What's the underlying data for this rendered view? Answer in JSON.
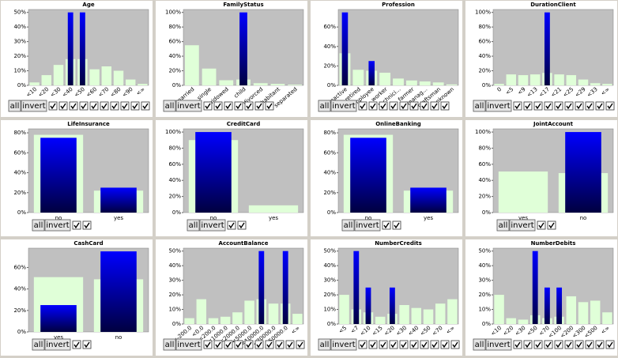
{
  "controls": {
    "buttons": [
      "all",
      "invert"
    ]
  },
  "chart_data": [
    {
      "type": "bar",
      "title": "Age",
      "categories": [
        "<10",
        "<20",
        "<30",
        "<40",
        "<50",
        "<60",
        "<70",
        "<80",
        "<90",
        "<∞"
      ],
      "series": [
        {
          "color": "#e0ffd8",
          "values": [
            2,
            7,
            14,
            18,
            18,
            11,
            13,
            10,
            4,
            1
          ]
        },
        {
          "color": "#0000ff",
          "values": [
            0,
            0,
            0,
            50,
            50,
            0,
            0,
            0,
            0,
            0
          ]
        }
      ],
      "ylim": [
        0,
        52
      ],
      "yticks": [
        {
          "value": 0,
          "label": "0%"
        },
        {
          "value": 10,
          "label": "10%"
        },
        {
          "value": 20,
          "label": "20%"
        },
        {
          "value": 30,
          "label": "30%"
        },
        {
          "value": 40,
          "label": "40%"
        },
        {
          "value": 50,
          "label": "50%"
        }
      ]
    },
    {
      "type": "bar",
      "title": "FamilyStatus",
      "categories": [
        "married",
        "single",
        "widowed",
        "child",
        "divorced",
        "cohabitant",
        "separated"
      ],
      "series": [
        {
          "color": "#e0ffd8",
          "values": [
            55,
            23,
            7,
            8,
            3,
            2,
            1
          ]
        },
        {
          "color": "#0000ff",
          "values": [
            0,
            0,
            0,
            100,
            0,
            0,
            0
          ]
        }
      ],
      "ylim": [
        0,
        104
      ],
      "yticks": [
        {
          "value": 0,
          "label": "0%"
        },
        {
          "value": 20,
          "label": "20%"
        },
        {
          "value": 40,
          "label": "40%"
        },
        {
          "value": 60,
          "label": "60%"
        },
        {
          "value": 80,
          "label": "80%"
        },
        {
          "value": 100,
          "label": "100%"
        }
      ]
    },
    {
      "type": "bar",
      "title": "Profession",
      "categories": [
        "inactive",
        "retired",
        "employee",
        "worker",
        "technici...",
        "farmer",
        "manag...",
        "craftsman",
        "unknown"
      ],
      "series": [
        {
          "color": "#e0ffd8",
          "values": [
            33,
            16,
            15,
            13,
            7,
            5,
            4,
            3,
            1
          ]
        },
        {
          "color": "#0000ff",
          "values": [
            75,
            0,
            25,
            0,
            0,
            0,
            0,
            0,
            0
          ]
        }
      ],
      "ylim": [
        0,
        78
      ],
      "yticks": [
        {
          "value": 0,
          "label": "0%"
        },
        {
          "value": 20,
          "label": "20%"
        },
        {
          "value": 40,
          "label": "40%"
        },
        {
          "value": 60,
          "label": "60%"
        }
      ]
    },
    {
      "type": "bar",
      "title": "DurationClient",
      "categories": [
        "0",
        "<5",
        "<9",
        "<13",
        "<17",
        "<21",
        "<25",
        "<29",
        "<33",
        "<∞"
      ],
      "series": [
        {
          "color": "#e0ffd8",
          "values": [
            2,
            15,
            14,
            15,
            17,
            15,
            14,
            8,
            3,
            2
          ]
        },
        {
          "color": "#0000ff",
          "values": [
            0,
            0,
            0,
            0,
            100,
            0,
            0,
            0,
            0,
            0
          ]
        }
      ],
      "ylim": [
        0,
        104
      ],
      "yticks": [
        {
          "value": 0,
          "label": "0%"
        },
        {
          "value": 20,
          "label": "20%"
        },
        {
          "value": 40,
          "label": "40%"
        },
        {
          "value": 60,
          "label": "60%"
        },
        {
          "value": 80,
          "label": "80%"
        },
        {
          "value": 100,
          "label": "100%"
        }
      ]
    },
    {
      "type": "bar",
      "title": "LifeInsurance",
      "categories": [
        "no",
        "yes"
      ],
      "series": [
        {
          "color": "#e0ffd8",
          "values": [
            78,
            22
          ]
        },
        {
          "color": "#0000ff",
          "values": [
            75,
            25
          ]
        }
      ],
      "ylim": [
        0,
        84
      ],
      "yticks": [
        {
          "value": 0,
          "label": "0%"
        },
        {
          "value": 20,
          "label": "20%"
        },
        {
          "value": 40,
          "label": "40%"
        },
        {
          "value": 60,
          "label": "60%"
        },
        {
          "value": 80,
          "label": "80%"
        }
      ]
    },
    {
      "type": "bar",
      "title": "CreditCard",
      "categories": [
        "no",
        "yes"
      ],
      "series": [
        {
          "color": "#e0ffd8",
          "values": [
            90,
            9
          ]
        },
        {
          "color": "#0000ff",
          "values": [
            100,
            0
          ]
        }
      ],
      "ylim": [
        0,
        104
      ],
      "yticks": [
        {
          "value": 0,
          "label": "0%"
        },
        {
          "value": 20,
          "label": "20%"
        },
        {
          "value": 40,
          "label": "40%"
        },
        {
          "value": 60,
          "label": "60%"
        },
        {
          "value": 80,
          "label": "80%"
        },
        {
          "value": 100,
          "label": "100%"
        }
      ]
    },
    {
      "type": "bar",
      "title": "OnlineBanking",
      "categories": [
        "no",
        "yes"
      ],
      "series": [
        {
          "color": "#e0ffd8",
          "values": [
            78,
            22
          ]
        },
        {
          "color": "#0000ff",
          "values": [
            75,
            25
          ]
        }
      ],
      "ylim": [
        0,
        84
      ],
      "yticks": [
        {
          "value": 0,
          "label": "0%"
        },
        {
          "value": 20,
          "label": "20%"
        },
        {
          "value": 40,
          "label": "40%"
        },
        {
          "value": 60,
          "label": "60%"
        },
        {
          "value": 80,
          "label": "80%"
        }
      ]
    },
    {
      "type": "bar",
      "title": "JointAccount",
      "categories": [
        "yes",
        "no"
      ],
      "series": [
        {
          "color": "#e0ffd8",
          "values": [
            51,
            49
          ]
        },
        {
          "color": "#0000ff",
          "values": [
            0,
            100
          ]
        }
      ],
      "ylim": [
        0,
        104
      ],
      "yticks": [
        {
          "value": 0,
          "label": "0%"
        },
        {
          "value": 20,
          "label": "20%"
        },
        {
          "value": 40,
          "label": "40%"
        },
        {
          "value": 60,
          "label": "60%"
        },
        {
          "value": 80,
          "label": "80%"
        },
        {
          "value": 100,
          "label": "100%"
        }
      ]
    },
    {
      "type": "bar",
      "title": "CashCard",
      "categories": [
        "yes",
        "no"
      ],
      "series": [
        {
          "color": "#e0ffd8",
          "values": [
            51,
            49
          ]
        },
        {
          "color": "#0000ff",
          "values": [
            25,
            75
          ]
        }
      ],
      "ylim": [
        0,
        78
      ],
      "yticks": [
        {
          "value": 0,
          "label": "0%"
        },
        {
          "value": 20,
          "label": "20%"
        },
        {
          "value": 40,
          "label": "40%"
        },
        {
          "value": 60,
          "label": "60%"
        }
      ]
    },
    {
      "type": "bar",
      "title": "AccountBalance",
      "categories": [
        "<-200.0",
        "<0.0",
        "<200.0",
        "<1000.0",
        "<2000.0",
        "<5000.0",
        "<10000.0",
        "<20000.0",
        "<50000.0",
        "<∞"
      ],
      "series": [
        {
          "color": "#e0ffd8",
          "values": [
            4,
            17,
            4,
            5,
            8,
            16,
            17,
            14,
            14,
            7
          ]
        },
        {
          "color": "#0000ff",
          "values": [
            0,
            0,
            0,
            0,
            0,
            0,
            50,
            0,
            50,
            0
          ]
        }
      ],
      "ylim": [
        0,
        52
      ],
      "yticks": [
        {
          "value": 0,
          "label": "0%"
        },
        {
          "value": 10,
          "label": "10%"
        },
        {
          "value": 20,
          "label": "20%"
        },
        {
          "value": 30,
          "label": "30%"
        },
        {
          "value": 40,
          "label": "40%"
        },
        {
          "value": 50,
          "label": "50%"
        }
      ]
    },
    {
      "type": "bar",
      "title": "NumberCredits",
      "categories": [
        "<5",
        "<7",
        "<10",
        "<15",
        "<20",
        "<30",
        "<40",
        "<50",
        "<70",
        "<∞"
      ],
      "series": [
        {
          "color": "#e0ffd8",
          "values": [
            20,
            10,
            8,
            5,
            7,
            13,
            11,
            10,
            14,
            17
          ]
        },
        {
          "color": "#0000ff",
          "values": [
            0,
            50,
            25,
            0,
            25,
            0,
            0,
            0,
            0,
            0
          ]
        }
      ],
      "ylim": [
        0,
        52
      ],
      "yticks": [
        {
          "value": 0,
          "label": "0%"
        },
        {
          "value": 10,
          "label": "10%"
        },
        {
          "value": 20,
          "label": "20%"
        },
        {
          "value": 30,
          "label": "30%"
        },
        {
          "value": 40,
          "label": "40%"
        },
        {
          "value": 50,
          "label": "50%"
        }
      ]
    },
    {
      "type": "bar",
      "title": "NumberDebits",
      "categories": [
        "<10",
        "<20",
        "<30",
        "<50",
        "<70",
        "<100",
        "<200",
        "<300",
        "<500",
        "<∞"
      ],
      "series": [
        {
          "color": "#e0ffd8",
          "values": [
            20,
            4,
            3,
            6,
            4,
            5,
            19,
            15,
            16,
            8
          ]
        },
        {
          "color": "#0000ff",
          "values": [
            0,
            0,
            0,
            50,
            25,
            25,
            0,
            0,
            0,
            0
          ]
        }
      ],
      "ylim": [
        0,
        52
      ],
      "yticks": [
        {
          "value": 0,
          "label": "0%"
        },
        {
          "value": 10,
          "label": "10%"
        },
        {
          "value": 20,
          "label": "20%"
        },
        {
          "value": 30,
          "label": "30%"
        },
        {
          "value": 40,
          "label": "40%"
        },
        {
          "value": 50,
          "label": "50%"
        }
      ]
    }
  ]
}
